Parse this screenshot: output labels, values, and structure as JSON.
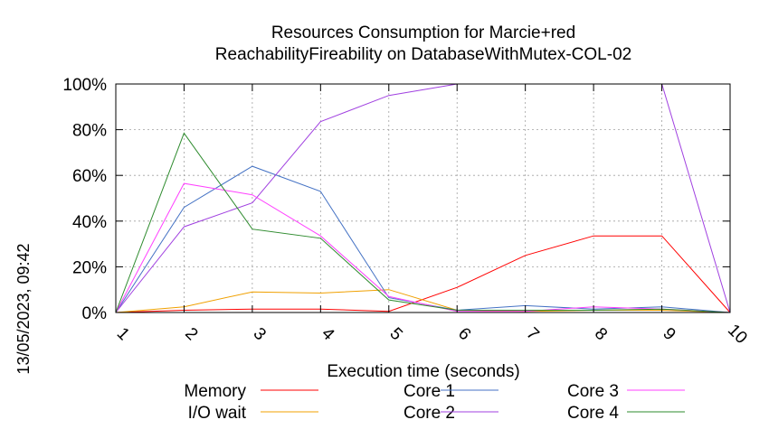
{
  "chart_data": {
    "type": "line",
    "title_line1": "Resources Consumption for Marcie+red",
    "title_line2": "ReachabilityFireability on DatabaseWithMutex-COL-02",
    "xlabel": "Execution time (seconds)",
    "ylabel": "",
    "side_label": "13/05/2023, 09:42",
    "x": [
      1,
      2,
      3,
      4,
      5,
      6,
      7,
      8,
      9,
      10
    ],
    "x_tick_labels": [
      "1",
      "2",
      "3",
      "4",
      "5",
      "6",
      "7",
      "8",
      "9",
      "10"
    ],
    "y_tick_labels": [
      "0%",
      "20%",
      "40%",
      "60%",
      "80%",
      "100%"
    ],
    "y_ticks": [
      0,
      20,
      40,
      60,
      80,
      100
    ],
    "xlim": [
      1,
      10
    ],
    "ylim": [
      0,
      100
    ],
    "grid": true,
    "legend_position": "bottom",
    "series": [
      {
        "name": "Memory",
        "color": "#ff0000",
        "values": [
          0,
          1,
          1.5,
          1.5,
          0.5,
          11,
          25,
          33.5,
          33.5,
          0
        ]
      },
      {
        "name": "I/O wait",
        "color": "#f0a000",
        "values": [
          0,
          2.5,
          9,
          8.5,
          10,
          1,
          0.5,
          1,
          1,
          0
        ]
      },
      {
        "name": "Core 1",
        "color": "#4472c4",
        "values": [
          0,
          46,
          64,
          53,
          6.5,
          1,
          3,
          1.5,
          2.5,
          0
        ]
      },
      {
        "name": "Core 2",
        "color": "#a040e0",
        "values": [
          0,
          37.5,
          48,
          83.5,
          95,
          100,
          100,
          100,
          100,
          0
        ]
      },
      {
        "name": "Core 3",
        "color": "#ff40ff",
        "values": [
          0,
          56.5,
          51.5,
          33.5,
          7,
          0.5,
          0.5,
          2.5,
          1.5,
          0
        ]
      },
      {
        "name": "Core 4",
        "color": "#2e8b2e",
        "values": [
          0,
          78.5,
          36.5,
          32.5,
          5.5,
          1,
          1,
          1,
          1.5,
          0
        ]
      }
    ]
  }
}
